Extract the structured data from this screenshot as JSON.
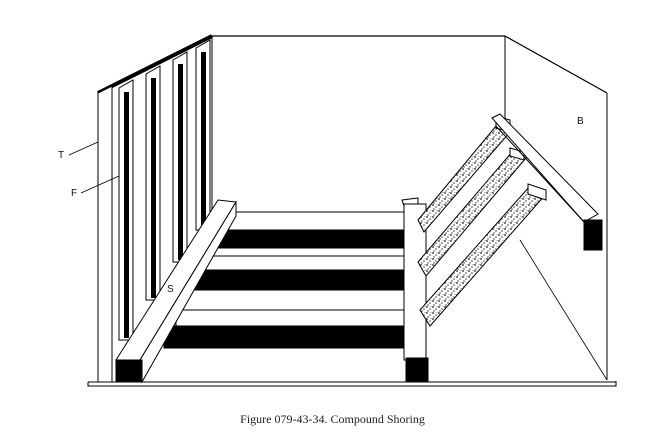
{
  "figure": {
    "labels": {
      "t": "T",
      "f": "F",
      "s": "S",
      "b": "B"
    },
    "caption": "Figure 079-43-34.  Compound Shoring"
  }
}
